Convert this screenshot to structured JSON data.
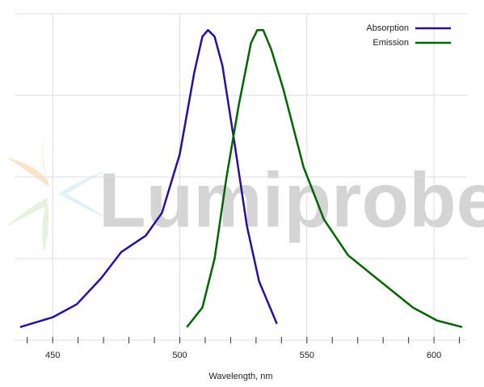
{
  "chart_data": {
    "type": "line",
    "watermark": "Lumiprobe",
    "x_label": "Wavelength, nm",
    "xlim": [
      435,
      613
    ],
    "xticks": [
      450,
      500,
      550,
      600
    ],
    "xminor_ticks": [
      440,
      450,
      460,
      470,
      480,
      490,
      500,
      510,
      520,
      530,
      540,
      550,
      560,
      570,
      580,
      590,
      600,
      610
    ],
    "ylim": [
      0,
      1
    ],
    "yticks": [
      0,
      0.25,
      0.5,
      0.75,
      1
    ],
    "grid": true,
    "legend": "top-right",
    "series": [
      {
        "name": "Absorption",
        "color": "#2a0f99",
        "x": [
          437.2,
          450,
          459.5,
          469.1,
          477,
          486.6,
          493,
          500,
          505.7,
          508.9,
          511.1,
          513.7,
          516.8,
          521.6,
          526.4,
          531.2,
          538.2
        ],
        "values": [
          0.04,
          0.07,
          0.11,
          0.19,
          0.27,
          0.32,
          0.39,
          0.57,
          0.82,
          0.93,
          0.95,
          0.93,
          0.84,
          0.6,
          0.35,
          0.18,
          0.05
        ]
      },
      {
        "name": "Emission",
        "color": "#006400",
        "x": [
          502.8,
          508.9,
          513.7,
          518.4,
          523.2,
          528,
          530.5,
          532.8,
          536,
          540.7,
          548.7,
          556.7,
          566.2,
          578.9,
          591.7,
          601.2,
          611.1
        ],
        "values": [
          0.04,
          0.1,
          0.25,
          0.5,
          0.72,
          0.91,
          0.95,
          0.95,
          0.89,
          0.77,
          0.53,
          0.37,
          0.26,
          0.18,
          0.1,
          0.06,
          0.04
        ]
      }
    ]
  }
}
